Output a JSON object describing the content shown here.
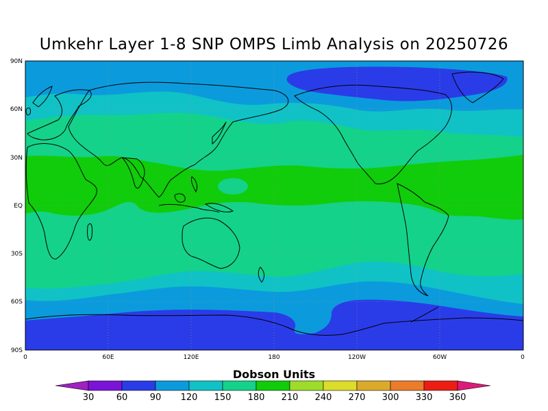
{
  "title": "Umkehr Layer 1-8 SNP OMPS Limb Analysis on 20250726",
  "lat_labels": [
    "90N",
    "60N",
    "30N",
    "EQ",
    "30S",
    "60S",
    "90S"
  ],
  "lon_labels": [
    "0",
    "60E",
    "120E",
    "180",
    "120W",
    "60W",
    "0"
  ],
  "colorbar": {
    "title": "Dobson Units",
    "levels": [
      "30",
      "60",
      "90",
      "120",
      "150",
      "180",
      "210",
      "240",
      "270",
      "300",
      "330",
      "360"
    ],
    "colors": [
      "#a020c0",
      "#7a14d8",
      "#2a3ce8",
      "#0b9bdc",
      "#10c2c6",
      "#14d28a",
      "#10cc0a",
      "#9edc2a",
      "#dcdc2a",
      "#dcaa2a",
      "#ec7c2a",
      "#ec1e14",
      "#dc1c78"
    ]
  },
  "map": {
    "type": "global ozone column contour map",
    "projection": "cylindrical equidistant, 0 to 360 longitude",
    "band_colors": {
      "60-90": "#2a3ce8",
      "90-120": "#0b9bdc",
      "120-150": "#10c2c6",
      "150-180": "#14d28a",
      "180-210": "#10cc0a"
    },
    "grid": "dotted"
  }
}
